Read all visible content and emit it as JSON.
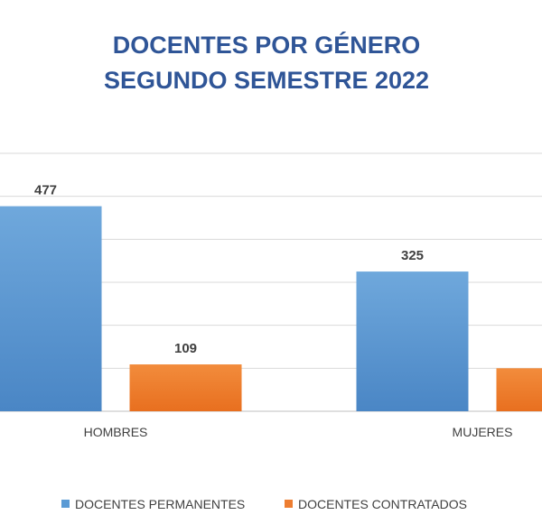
{
  "chart_data": {
    "type": "bar",
    "title": "DOCENTES POR GÉNERO",
    "subtitle": "SEGUNDO SEMESTRE 2022",
    "categories": [
      "HOMBRES",
      "MUJERES"
    ],
    "series": [
      {
        "name": "DOCENTES PERMANENTES",
        "values": [
          477,
          325
        ],
        "color": "#5b9bd5"
      },
      {
        "name": "DOCENTES CONTRATADOS",
        "values": [
          109,
          100
        ],
        "color": "#ed7d31"
      }
    ],
    "ylim": [
      0,
      600
    ],
    "grid": true,
    "legend": "bottom",
    "data_labels": [
      "477",
      "109",
      "325",
      ""
    ]
  }
}
